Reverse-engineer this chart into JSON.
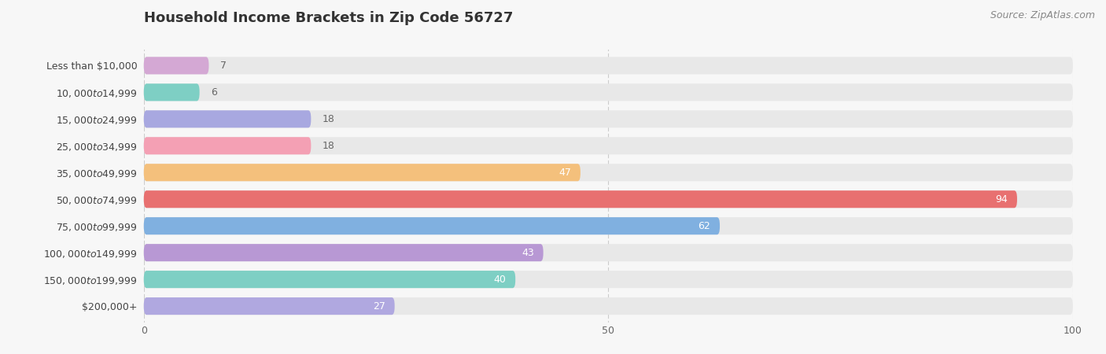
{
  "title": "Household Income Brackets in Zip Code 56727",
  "source": "Source: ZipAtlas.com",
  "categories": [
    "Less than $10,000",
    "$10,000 to $14,999",
    "$15,000 to $24,999",
    "$25,000 to $34,999",
    "$35,000 to $49,999",
    "$50,000 to $74,999",
    "$75,000 to $99,999",
    "$100,000 to $149,999",
    "$150,000 to $199,999",
    "$200,000+"
  ],
  "values": [
    7,
    6,
    18,
    18,
    47,
    94,
    62,
    43,
    40,
    27
  ],
  "colors": [
    "#d4a8d4",
    "#7ecfc4",
    "#a8a8e0",
    "#f4a0b4",
    "#f4c07c",
    "#e87070",
    "#80b0e0",
    "#b898d4",
    "#7ecfc4",
    "#b0a8e0"
  ],
  "xlim": [
    0,
    100
  ],
  "xticks": [
    0,
    50,
    100
  ],
  "bg_color": "#f7f7f7",
  "bar_bg_color": "#e8e8e8",
  "value_color_inside": "#ffffff",
  "value_color_outside": "#666666",
  "title_fontsize": 13,
  "label_fontsize": 9,
  "value_fontsize": 9,
  "source_fontsize": 9,
  "bar_height": 0.65,
  "inside_threshold": 20
}
